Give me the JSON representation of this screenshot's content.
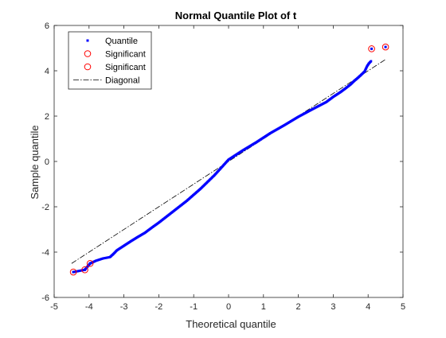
{
  "chart_data": {
    "type": "scatter",
    "title": "Normal Quantile Plot of t",
    "xlabel": "Theoretical quantile",
    "ylabel": "Sample quantile",
    "xlim": [
      -5,
      5
    ],
    "ylim": [
      -6,
      6
    ],
    "x_ticks": [
      "-5",
      "-4",
      "-3",
      "-2",
      "-1",
      "0",
      "1",
      "2",
      "3",
      "4",
      "5"
    ],
    "y_ticks": [
      "-6",
      "-4",
      "-2",
      "0",
      "2",
      "4",
      "6"
    ],
    "grid": false,
    "legend_position": "top-left",
    "series": [
      {
        "name": "Quantile",
        "kind": "points",
        "color": "#0000ff",
        "curve": [
          [
            -4.45,
            -4.88
          ],
          [
            -4.12,
            -4.78
          ],
          [
            -3.97,
            -4.5
          ],
          [
            -3.8,
            -4.38
          ],
          [
            -3.6,
            -4.28
          ],
          [
            -3.4,
            -4.22
          ],
          [
            -3.3,
            -4.08
          ],
          [
            -3.2,
            -3.92
          ],
          [
            -3.0,
            -3.72
          ],
          [
            -2.8,
            -3.52
          ],
          [
            -2.6,
            -3.33
          ],
          [
            -2.4,
            -3.15
          ],
          [
            -2.2,
            -2.92
          ],
          [
            -2.0,
            -2.7
          ],
          [
            -1.6,
            -2.22
          ],
          [
            -1.2,
            -1.74
          ],
          [
            -0.8,
            -1.2
          ],
          [
            -0.4,
            -0.6
          ],
          [
            0.0,
            0.08
          ],
          [
            0.4,
            0.48
          ],
          [
            0.8,
            0.85
          ],
          [
            1.2,
            1.25
          ],
          [
            1.6,
            1.6
          ],
          [
            2.0,
            1.97
          ],
          [
            2.4,
            2.3
          ],
          [
            2.8,
            2.62
          ],
          [
            3.0,
            2.85
          ],
          [
            3.2,
            3.05
          ],
          [
            3.35,
            3.22
          ],
          [
            3.5,
            3.4
          ],
          [
            3.6,
            3.55
          ],
          [
            3.7,
            3.68
          ],
          [
            3.8,
            3.82
          ],
          [
            3.9,
            3.97
          ],
          [
            3.97,
            4.2
          ],
          [
            4.02,
            4.32
          ],
          [
            4.1,
            4.45
          ]
        ],
        "extremes": [
          [
            -4.45,
            -4.88
          ],
          [
            -4.12,
            -4.78
          ],
          [
            -3.97,
            -4.5
          ],
          [
            4.1,
            4.97
          ],
          [
            4.5,
            5.05
          ]
        ]
      },
      {
        "name": "Significant",
        "kind": "circles",
        "color": "#ff0000",
        "points": [
          [
            -4.45,
            -4.88
          ],
          [
            -4.12,
            -4.78
          ],
          [
            -3.97,
            -4.5
          ]
        ]
      },
      {
        "name": "Significant",
        "kind": "circles",
        "color": "#ff0000",
        "points": [
          [
            4.1,
            4.97
          ],
          [
            4.5,
            5.05
          ]
        ]
      },
      {
        "name": "Diagonal",
        "kind": "dashdot-line",
        "color": "#000000",
        "points": [
          [
            -4.5,
            -4.5
          ],
          [
            4.5,
            4.5
          ]
        ]
      }
    ]
  }
}
